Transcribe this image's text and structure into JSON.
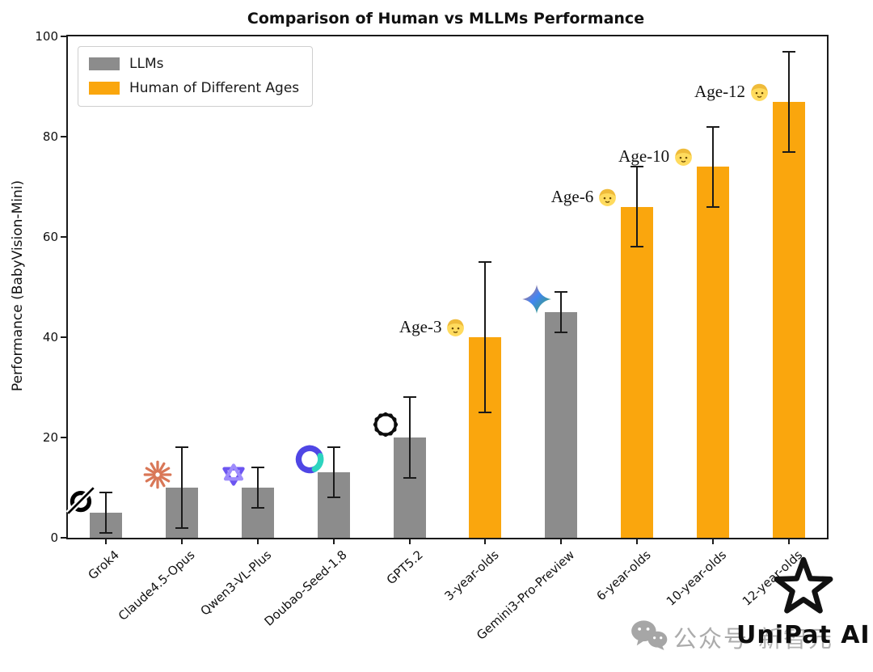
{
  "title": "Comparison of Human vs MLLMs Performance",
  "y_axis": {
    "label": "Performance (BabyVision-Mini)"
  },
  "legend": {
    "items": [
      {
        "label": "LLMs",
        "color": "#8c8c8c",
        "swatch": "llm-color-swatch"
      },
      {
        "label": "Human of Different Ages",
        "color": "#faa60d",
        "swatch": "human-color-swatch"
      }
    ]
  },
  "chart_data": {
    "type": "bar",
    "title": "Comparison of Human vs MLLMs Performance",
    "xlabel": "",
    "ylabel": "Performance (BabyVision-Mini)",
    "ylim": [
      0,
      100
    ],
    "yticks": [
      0,
      20,
      40,
      60,
      80,
      100
    ],
    "grid": false,
    "legend_position": "upper-left",
    "bar_colors": {
      "llm": "#8c8c8c",
      "human": "#faa60d"
    },
    "error_bar_color": "#1a1a1a",
    "bars": [
      {
        "label": "Grok4",
        "value": 5,
        "error_range": [
          1,
          9
        ],
        "group": "llm",
        "icon": "grok-icon"
      },
      {
        "label": "Claude4.5-Opus",
        "value": 10,
        "error_range": [
          2,
          18
        ],
        "group": "llm",
        "icon": "claude-icon"
      },
      {
        "label": "Qwen3-VL-Plus",
        "value": 10,
        "error_range": [
          6,
          14
        ],
        "group": "llm",
        "icon": "qwen-icon"
      },
      {
        "label": "Doubao-Seed-1.8",
        "value": 13,
        "error_range": [
          8,
          18
        ],
        "group": "llm",
        "icon": "doubao-icon"
      },
      {
        "label": "GPT5.2",
        "value": 20,
        "error_range": [
          12,
          28
        ],
        "group": "llm",
        "icon": "openai-icon"
      },
      {
        "label": "3-year-olds",
        "value": 40,
        "error_range": [
          25,
          55
        ],
        "group": "human",
        "annotation": "Age-3",
        "emoji": "child-face-emoji"
      },
      {
        "label": "Gemini3-Pro-Preview",
        "value": 45,
        "error_range": [
          41,
          49
        ],
        "group": "llm",
        "icon": "gemini-icon"
      },
      {
        "label": "6-year-olds",
        "value": 66,
        "error_range": [
          58,
          74
        ],
        "group": "human",
        "annotation": "Age-6",
        "emoji": "child-face-emoji"
      },
      {
        "label": "10-year-olds",
        "value": 74,
        "error_range": [
          66,
          82
        ],
        "group": "human",
        "annotation": "Age-10",
        "emoji": "child-face-emoji"
      },
      {
        "label": "12-year-olds",
        "value": 87,
        "error_range": [
          77,
          97
        ],
        "group": "human",
        "annotation": "Age-12",
        "emoji": "child-face-emoji"
      }
    ]
  },
  "watermark": {
    "wechat_icon": "wechat-icon",
    "prefix": "公众号",
    "account": "新智元",
    "brand": "UniPat AI",
    "logo": "unipat-star-logo"
  }
}
